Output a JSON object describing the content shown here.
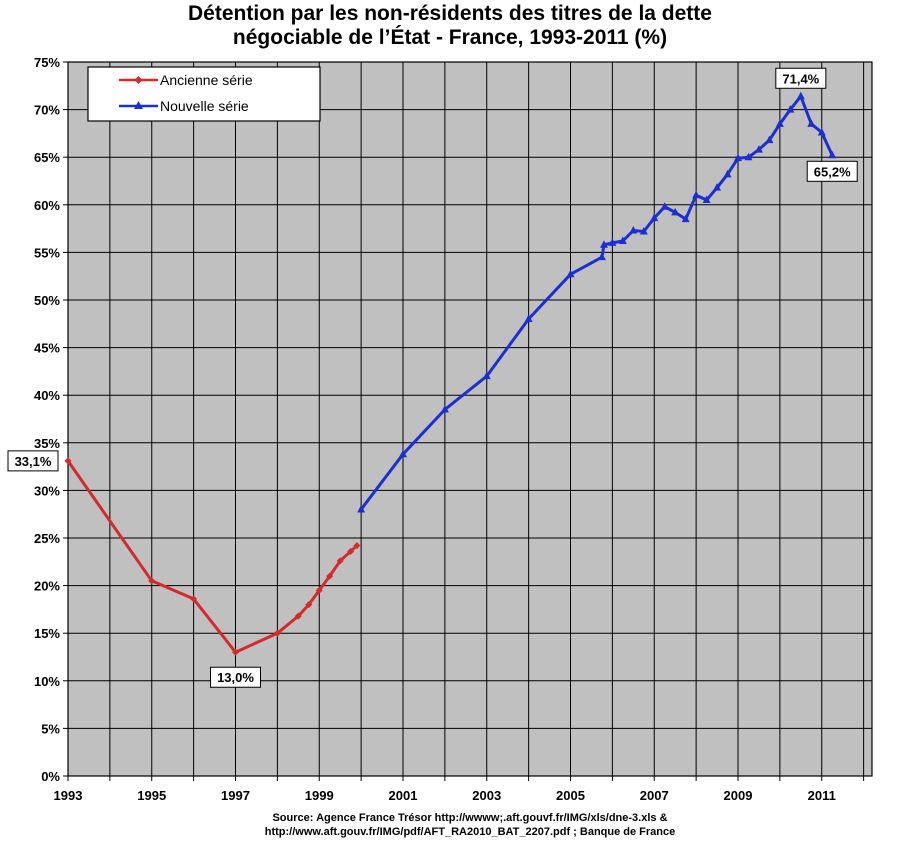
{
  "chart_data": {
    "type": "line",
    "title_lines": [
      "Détention par les non-résidents des titres de la dette",
      "négociable de l’État - France, 1993-2011 (%)"
    ],
    "xlabel": "",
    "ylabel": "",
    "xlim": [
      1993,
      2012.2
    ],
    "ylim": [
      0,
      75
    ],
    "x_ticks": [
      1993,
      1995,
      1997,
      1999,
      2001,
      2003,
      2005,
      2007,
      2009,
      2011
    ],
    "x_tick_labels": [
      "1993",
      "1995",
      "1997",
      "1999",
      "2001",
      "2003",
      "2005",
      "2007",
      "2009",
      "2011"
    ],
    "y_ticks": [
      0,
      5,
      10,
      15,
      20,
      25,
      30,
      35,
      40,
      45,
      50,
      55,
      60,
      65,
      70,
      75
    ],
    "y_tick_labels": [
      "0%",
      "5%",
      "10%",
      "15%",
      "20%",
      "25%",
      "30%",
      "35%",
      "40%",
      "45%",
      "50%",
      "55%",
      "60%",
      "65%",
      "70%",
      "75%"
    ],
    "grid": true,
    "plot_background": "#c0c0c0",
    "legend_position": "top-left",
    "series": [
      {
        "name": "Ancienne série",
        "color": "#d42a2a",
        "marker": "diamond",
        "x": [
          1993.0,
          1995.0,
          1996.0,
          1997.0,
          1998.0,
          1998.5,
          1998.75,
          1999.0,
          1999.25,
          1999.5,
          1999.75,
          1999.9
        ],
        "y": [
          33.1,
          20.5,
          18.6,
          13.0,
          15.0,
          16.8,
          18.0,
          19.5,
          21.0,
          22.6,
          23.6,
          24.2
        ]
      },
      {
        "name": "Nouvelle série",
        "color": "#1a2fd4",
        "marker": "triangle",
        "x": [
          2000.0,
          2001.0,
          2002.0,
          2003.0,
          2004.0,
          2005.0,
          2005.75,
          2005.8,
          2006.0,
          2006.25,
          2006.5,
          2006.75,
          2007.0,
          2007.25,
          2007.5,
          2007.75,
          2008.0,
          2008.25,
          2008.5,
          2008.75,
          2009.0,
          2009.25,
          2009.5,
          2009.75,
          2010.0,
          2010.25,
          2010.5,
          2010.75,
          2011.0,
          2011.25
        ],
        "y": [
          28.0,
          33.8,
          38.5,
          42.0,
          48.0,
          52.7,
          54.5,
          55.8,
          56.0,
          56.2,
          57.3,
          57.2,
          58.6,
          59.8,
          59.2,
          58.5,
          61.0,
          60.5,
          61.8,
          63.2,
          64.9,
          65.0,
          65.8,
          66.8,
          68.5,
          70.0,
          71.4,
          68.5,
          67.6,
          65.2
        ]
      }
    ],
    "annotations": [
      {
        "text": "33,1%",
        "x": 1993.0,
        "y": 33.1,
        "anchor": "left"
      },
      {
        "text": "13,0%",
        "x": 1997.0,
        "y": 13.0,
        "anchor": "below"
      },
      {
        "text": "71,4%",
        "x": 2010.5,
        "y": 71.4,
        "anchor": "above"
      },
      {
        "text": "65,2%",
        "x": 2011.25,
        "y": 65.2,
        "anchor": "below"
      }
    ],
    "source_lines": [
      "Source: Agence France Trésor http://wwww;.aft.gouvf.fr/IMG/xls/dne-3.xls &",
      "http://www.aft.gouv.fr/IMG/pdf/AFT_RA2010_BAT_2207.pdf ; Banque de France"
    ]
  }
}
